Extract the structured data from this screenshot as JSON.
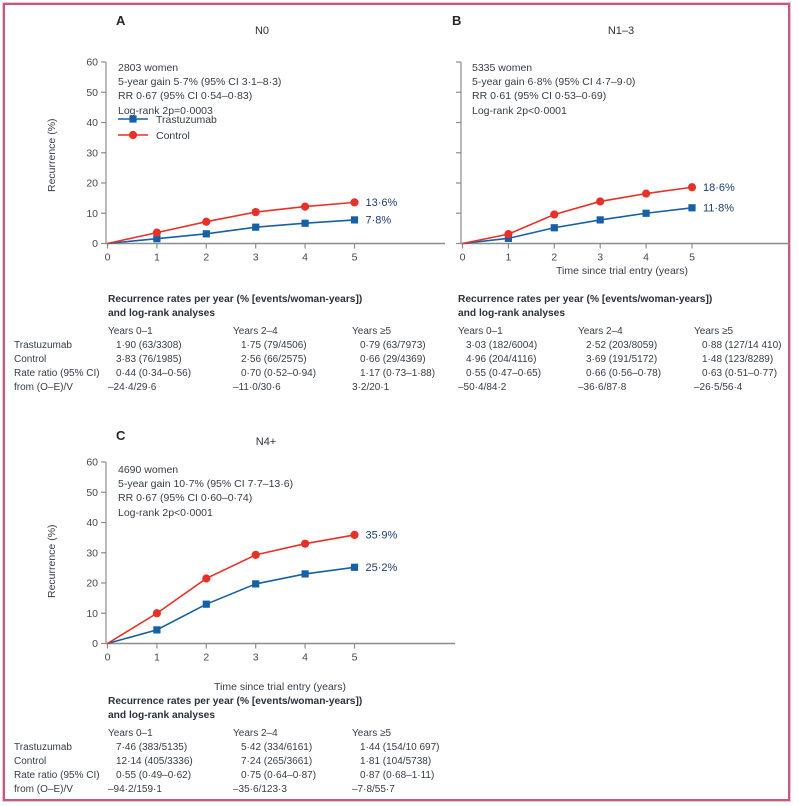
{
  "colors": {
    "trastuzumab": "#1660a5",
    "control": "#e73128",
    "axis": "#8c8c8c",
    "tick": "#44484d",
    "end_label": "#1b3e6f",
    "border_pink": "#c25b78"
  },
  "panels": {
    "a": {
      "letter": "A"
    },
    "b": {
      "letter": "B"
    },
    "c": {
      "letter": "C"
    }
  },
  "chart_data": [
    {
      "type": "line",
      "panel": "A",
      "title": "N0",
      "annotation": [
        "2803 women",
        "5-year gain 5·7% (95% CI 3·1–8·3)",
        "RR 0·67 (95% CI 0·54–0·83)",
        "Log-rank 2p=0·0003"
      ],
      "x": [
        0,
        1,
        2,
        3,
        4,
        5
      ],
      "series": [
        {
          "name": "Trastuzumab",
          "marker": "square",
          "color_key": "trastuzumab",
          "values": [
            0,
            1.6,
            3.2,
            5.4,
            6.7,
            7.8
          ],
          "end_label": "7·8%"
        },
        {
          "name": "Control",
          "marker": "circle",
          "color_key": "control",
          "values": [
            0,
            3.6,
            7.2,
            10.4,
            12.2,
            13.6
          ],
          "end_label": "13·6%"
        }
      ],
      "ylabel": "Recurrence (%)",
      "xlabel": null,
      "ylim": [
        0,
        60
      ],
      "yticks": [
        0,
        10,
        20,
        30,
        40,
        50,
        60
      ],
      "legend_position": "inside-left",
      "grid": false
    },
    {
      "type": "line",
      "panel": "B",
      "title": "N1–3",
      "annotation": [
        "5335 women",
        "5-year gain 6·8% (95% CI 4·7–9·0)",
        "RR 0·61 (95% CI 0·53–0·69)",
        "Log-rank 2p<0·0001"
      ],
      "x": [
        0,
        1,
        2,
        3,
        4,
        5
      ],
      "series": [
        {
          "name": "Trastuzumab",
          "marker": "square",
          "color_key": "trastuzumab",
          "values": [
            0,
            1.7,
            5.2,
            7.8,
            10.0,
            11.8
          ],
          "end_label": "11·8%"
        },
        {
          "name": "Control",
          "marker": "circle",
          "color_key": "control",
          "values": [
            0,
            3.1,
            9.6,
            13.9,
            16.5,
            18.6
          ],
          "end_label": "18·6%"
        }
      ],
      "ylabel": null,
      "xlabel": "Time since trial entry (years)",
      "ylim": [
        0,
        60
      ],
      "yticks": [
        0,
        10,
        20,
        30,
        40,
        50,
        60
      ],
      "legend_position": "none",
      "grid": false
    },
    {
      "type": "line",
      "panel": "C",
      "title": "N4+",
      "annotation": [
        "4690 women",
        "5-year gain 10·7% (95% CI 7·7–13·6)",
        "RR 0·67 (95% CI 0·60–0·74)",
        "Log-rank 2p<0·0001"
      ],
      "x": [
        0,
        1,
        2,
        3,
        4,
        5
      ],
      "series": [
        {
          "name": "Trastuzumab",
          "marker": "square",
          "color_key": "trastuzumab",
          "values": [
            0,
            4.5,
            13.0,
            19.7,
            23.0,
            25.2
          ],
          "end_label": "25·2%"
        },
        {
          "name": "Control",
          "marker": "circle",
          "color_key": "control",
          "values": [
            0,
            10.0,
            21.5,
            29.3,
            33.0,
            35.9
          ],
          "end_label": "35·9%"
        }
      ],
      "ylabel": "Recurrence (%)",
      "xlabel": "Time since trial entry (years)",
      "ylim": [
        0,
        60
      ],
      "yticks": [
        0,
        10,
        20,
        30,
        40,
        50,
        60
      ],
      "legend_position": "none",
      "grid": false
    }
  ],
  "tables": {
    "header_line1": "Recurrence rates per year (% [events/woman-years])",
    "header_line2": "and log-rank analyses",
    "row_labels": [
      "Trastuzumab",
      "Control",
      "Rate ratio (95% CI)",
      "from (O–E)/V"
    ],
    "a": {
      "columns": [
        "Years 0–1",
        "Years 2–4",
        "Years ≥5"
      ],
      "rows": [
        [
          "1·90 (63/3308)",
          "1·75 (79/4506)",
          "0·79 (63/7973)"
        ],
        [
          "3·83 (76/1985)",
          "2·56 (66/2575)",
          "0·66 (29/4369)"
        ],
        [
          "0·44 (0·34–0·56)",
          "0·70 (0·52–0·94)",
          "1·17 (0·73–1·88)"
        ],
        [
          "–24·4/29·6",
          "–11·0/30·6",
          "3·2/20·1"
        ]
      ]
    },
    "b": {
      "columns": [
        "Years 0–1",
        "Years 2–4",
        "Years ≥5"
      ],
      "rows": [
        [
          "3·03 (182/6004)",
          "2·52 (203/8059)",
          "0·88 (127/14 410)"
        ],
        [
          "4·96 (204/4116)",
          "3·69 (191/5172)",
          "1·48 (123/8289)"
        ],
        [
          "0·55 (0·47–0·65)",
          "0·66 (0·56–0·78)",
          "0·63 (0·51–0·77)"
        ],
        [
          "–50·4/84·2",
          "–36·6/87·8",
          "–26·5/56·4"
        ]
      ]
    },
    "c": {
      "columns": [
        "Years 0–1",
        "Years 2–4",
        "Years ≥5"
      ],
      "rows": [
        [
          "7·46 (383/5135)",
          "5·42 (334/6161)",
          "1·44 (154/10 697)"
        ],
        [
          "12·14 (405/3336)",
          "7·24 (265/3661)",
          "1·81 (104/5738)"
        ],
        [
          "0·55 (0·49–0·62)",
          "0·75 (0·64–0·87)",
          "0·87 (0·68–1·11)"
        ],
        [
          "–94·2/159·1",
          "–35·6/123·3",
          "–7·8/55·7"
        ]
      ]
    }
  }
}
